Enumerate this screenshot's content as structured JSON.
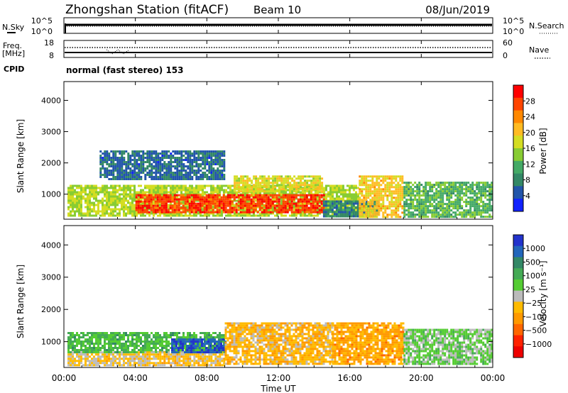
{
  "header": {
    "station": "Zhongshan Station (fitACF)",
    "beam": "Beam 10",
    "date": "08/Jun/2019",
    "cpid_label": "CPID",
    "mode": "normal (fast stereo) 153"
  },
  "noise_panel": {
    "left_label": "N.Sky",
    "right_label": "N.Search",
    "left_ticks": [
      "10^5",
      "10^0"
    ],
    "right_ticks": [
      "10^5",
      "10^0"
    ]
  },
  "freq_panel": {
    "left_label_1": "Freq.",
    "left_label_2": "[MHz]",
    "right_label": "Nave",
    "left_ticks": [
      "18",
      "8"
    ],
    "right_ticks": [
      "60",
      "0"
    ]
  },
  "axes": {
    "ylabel": "Slant Range [km]",
    "xlabel": "Time UT",
    "y_ticks": [
      "4000",
      "3000",
      "2000",
      "1000"
    ],
    "x_ticks": [
      "00:00",
      "04:00",
      "08:00",
      "12:00",
      "16:00",
      "20:00",
      "00:00"
    ]
  },
  "colorbars": {
    "power": {
      "title": "Power [dB]",
      "ticks": [
        "28",
        "24",
        "20",
        "16",
        "12",
        "8",
        "4"
      ],
      "colors": [
        "#ff0000",
        "#ff4400",
        "#ff8800",
        "#ffbb22",
        "#d4dd22",
        "#88cc33",
        "#44aa66",
        "#338866",
        "#2255aa",
        "#1122ff"
      ]
    },
    "velocity": {
      "title": "Velocity [m s⁻¹]",
      "ticks": [
        "1000",
        "500",
        "100",
        "25",
        "−25",
        "−100",
        "−500",
        "−1000"
      ],
      "colors": [
        "#2233cc",
        "#2266bb",
        "#338866",
        "#44aa55",
        "#55cc33",
        "#bbbbbb",
        "#ffbb00",
        "#ff9900",
        "#ff6600",
        "#ff2200",
        "#ee0000"
      ]
    }
  },
  "chart_data": [
    {
      "type": "heatmap",
      "title": "Power [dB]",
      "xlabel": "Time UT",
      "ylabel": "Slant Range [km]",
      "xlim": [
        0,
        24
      ],
      "ylim": [
        200,
        4600
      ],
      "clim": [
        0,
        32
      ],
      "regions": [
        {
          "t": [
            0.2,
            16.5
          ],
          "r": [
            300,
            1300
          ],
          "level": 16
        },
        {
          "t": [
            4.0,
            14.5
          ],
          "r": [
            450,
            1000
          ],
          "level": 28
        },
        {
          "t": [
            9.5,
            14.5
          ],
          "r": [
            1100,
            1600
          ],
          "level": 18
        },
        {
          "t": [
            14.5,
            17.5
          ],
          "r": [
            300,
            800
          ],
          "level": 8
        },
        {
          "t": [
            16.5,
            19.0
          ],
          "r": [
            300,
            1600
          ],
          "level": 20
        },
        {
          "t": [
            19.0,
            24.0
          ],
          "r": [
            300,
            1400
          ],
          "level": 12
        },
        {
          "t": [
            2.0,
            9.0
          ],
          "r": [
            1500,
            2400
          ],
          "level": 6
        }
      ]
    },
    {
      "type": "heatmap",
      "title": "Velocity [m s⁻¹]",
      "xlabel": "Time UT",
      "ylabel": "Slant Range [km]",
      "xlim": [
        0,
        24
      ],
      "ylim": [
        200,
        4600
      ],
      "clim": [
        -1000,
        1000
      ],
      "regions": [
        {
          "t": [
            0.2,
            4.5
          ],
          "r": [
            300,
            700
          ],
          "level": -100
        },
        {
          "t": [
            0.2,
            9.0
          ],
          "r": [
            700,
            1300
          ],
          "level": 300
        },
        {
          "t": [
            4.5,
            9.0
          ],
          "r": [
            300,
            700
          ],
          "level": -150
        },
        {
          "t": [
            6.0,
            9.0
          ],
          "r": [
            700,
            1100
          ],
          "level": 800
        },
        {
          "t": [
            9.0,
            15.0
          ],
          "r": [
            300,
            1600
          ],
          "level": -200
        },
        {
          "t": [
            15.0,
            19.0
          ],
          "r": [
            300,
            1600
          ],
          "level": -300
        },
        {
          "t": [
            19.0,
            24.0
          ],
          "r": [
            300,
            1400
          ],
          "level": 150
        }
      ]
    }
  ]
}
